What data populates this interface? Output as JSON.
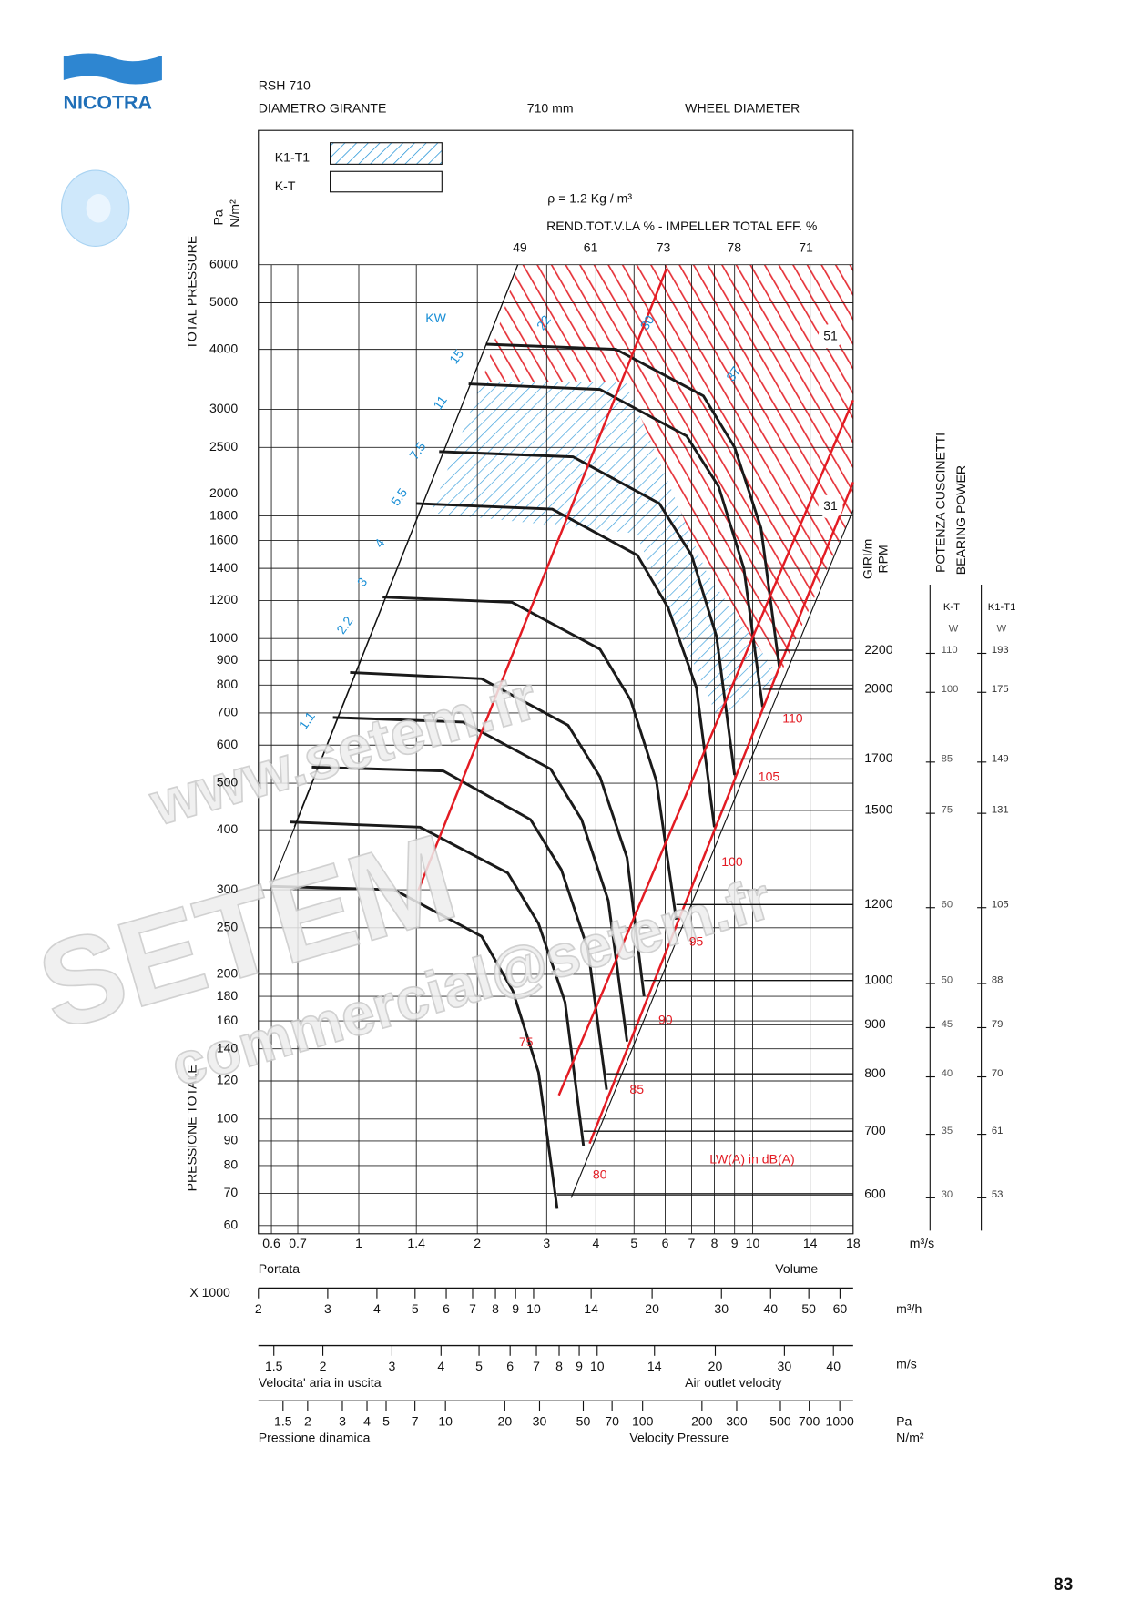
{
  "header": {
    "brand": "NICOTRA",
    "model": "RSH 710",
    "diameter_it": "DIAMETRO GIRANTE",
    "diameter": "710 mm",
    "diameter_en": "WHEEL DIAMETER"
  },
  "page_number": "83",
  "watermark": [
    "www.setem.fr",
    "SETEM",
    "commercial@setem.fr"
  ],
  "chart_data": {
    "type": "fan-curve",
    "legend": [
      "K1-T1",
      "K-T"
    ],
    "density_label": "ρ = 1.2 Kg / m³",
    "efficiency_title": "REND.TOT.V.LA % - IMPELLER TOTAL EFF. %",
    "efficiency_labels": [
      49,
      61,
      73,
      78,
      71
    ],
    "y_label_en": "TOTAL PRESSURE",
    "y_label_it": "PRESSIONE TOTALE",
    "y_unit": [
      "Pa",
      "N/m²"
    ],
    "x_unit": "m³/s",
    "x_label_it": "Portata",
    "x_label_en": "Volume",
    "log_x": true,
    "log_y": true,
    "grid": true,
    "xlim": [
      0.556,
      18
    ],
    "xticks": [
      0.6,
      0.7,
      1,
      1.4,
      2,
      3,
      4,
      5,
      6,
      7,
      8,
      9,
      10,
      14,
      18
    ],
    "ylim": [
      60,
      6000
    ],
    "yticks": [
      6000,
      5000,
      4000,
      3000,
      2500,
      2000,
      1800,
      1600,
      1400,
      1200,
      1000,
      900,
      800,
      700,
      600,
      500,
      400,
      300,
      250,
      200,
      180,
      160,
      140,
      120,
      100,
      90,
      80,
      70,
      60
    ],
    "rpm_label": [
      "GIRI/m",
      "RPM"
    ],
    "series": [
      {
        "name": "2200",
        "color": "#1a1a1a",
        "x": [
          2.1,
          4.5,
          7.5,
          9.0,
          10.5,
          11.7
        ],
        "values": [
          4100,
          4000,
          3200,
          2500,
          1700,
          870
        ]
      },
      {
        "name": "2000",
        "color": "#1a1a1a",
        "x": [
          1.9,
          4.1,
          6.8,
          8.2,
          9.5,
          10.6
        ],
        "values": [
          3390,
          3300,
          2640,
          2070,
          1400,
          720
        ]
      },
      {
        "name": "1700",
        "color": "#1a1a1a",
        "x": [
          1.6,
          3.5,
          5.8,
          7.0,
          8.1,
          9.0
        ],
        "values": [
          2450,
          2390,
          1910,
          1490,
          1010,
          520
        ]
      },
      {
        "name": "1500",
        "color": "#1a1a1a",
        "x": [
          1.4,
          3.1,
          5.1,
          6.1,
          7.2,
          8.0
        ],
        "values": [
          1910,
          1860,
          1490,
          1160,
          790,
          405
        ]
      },
      {
        "name": "1200",
        "color": "#1a1a1a",
        "x": [
          1.15,
          2.45,
          4.1,
          4.9,
          5.7,
          6.4
        ],
        "values": [
          1220,
          1190,
          950,
          745,
          505,
          260
        ]
      },
      {
        "name": "1000",
        "color": "#1a1a1a",
        "x": [
          0.95,
          2.05,
          3.4,
          4.1,
          4.8,
          5.3
        ],
        "values": [
          850,
          825,
          660,
          515,
          350,
          180
        ]
      },
      {
        "name": "900",
        "color": "#1a1a1a",
        "x": [
          0.86,
          1.84,
          3.07,
          3.68,
          4.3,
          4.8
        ],
        "values": [
          685,
          670,
          535,
          420,
          285,
          145
        ]
      },
      {
        "name": "800",
        "color": "#1a1a1a",
        "x": [
          0.76,
          1.64,
          2.73,
          3.27,
          3.82,
          4.26
        ],
        "values": [
          540,
          530,
          420,
          330,
          225,
          115
        ]
      },
      {
        "name": "700",
        "color": "#1a1a1a",
        "x": [
          0.67,
          1.43,
          2.39,
          2.86,
          3.34,
          3.72
        ],
        "values": [
          415,
          405,
          325,
          255,
          175,
          88
        ]
      },
      {
        "name": "600",
        "color": "#1a1a1a",
        "x": [
          0.6,
          1.23,
          2.05,
          2.46,
          2.86,
          3.19
        ],
        "values": [
          305,
          300,
          240,
          185,
          125,
          65
        ]
      }
    ],
    "power_unit": "KW",
    "power_labels": [
      1.1,
      2.2,
      3,
      4,
      5.5,
      7.5,
      11,
      15,
      22,
      30,
      37
    ],
    "noise_unit": "LW(A) in dB(A)",
    "noise_labels": [
      75,
      80,
      85,
      90,
      95,
      100,
      105,
      110
    ],
    "limit_labels": [
      51,
      31
    ],
    "bearing": {
      "title": [
        "POTENZA CUSCINETTI",
        "BEARING POWER"
      ],
      "columns": [
        "K-T",
        "K1-T1"
      ],
      "unit": "W",
      "kt": [
        110,
        100,
        85,
        75,
        60,
        50,
        45,
        40,
        35,
        30
      ],
      "k1t1": [
        193,
        175,
        149,
        131,
        105,
        88,
        79,
        70,
        61,
        53
      ]
    }
  },
  "scales": [
    {
      "prefix": "X 1000",
      "unit": "m³/h",
      "lim": [
        2,
        64.8
      ],
      "ticks": [
        2,
        3,
        4,
        5,
        6,
        7,
        8,
        9,
        10,
        14,
        20,
        30,
        40,
        50,
        60
      ]
    },
    {
      "unit": "m/s",
      "lim": [
        1.37,
        44.9
      ],
      "ticks": [
        1.5,
        2,
        3,
        4,
        5,
        6,
        7,
        8,
        9,
        10,
        14,
        20,
        30,
        40
      ],
      "label_it": "Velocita' aria in uscita",
      "label_en": "Air outlet velocity"
    },
    {
      "unit": [
        "Pa",
        "N/m²"
      ],
      "lim": [
        1.125,
        1169
      ],
      "ticks": [
        1.5,
        2,
        3,
        4,
        5,
        7,
        10,
        20,
        30,
        50,
        70,
        100,
        200,
        300,
        500,
        700,
        1000
      ],
      "label_it": "Pressione dinamica",
      "label_en": "Velocity Pressure"
    }
  ]
}
